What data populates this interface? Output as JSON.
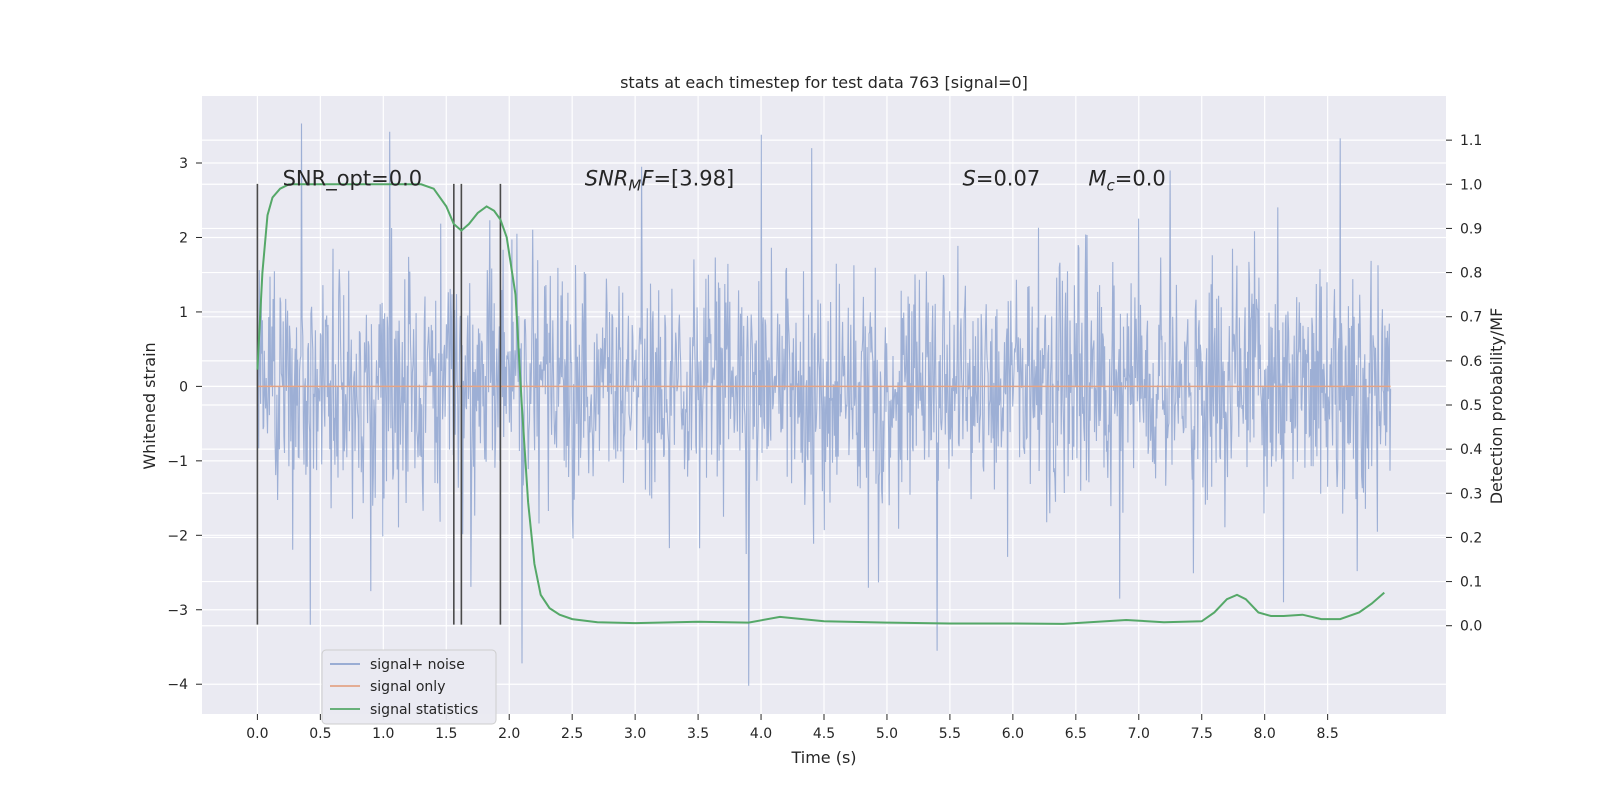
{
  "chart_data": {
    "type": "line",
    "title": "stats at each timestep for test data 763 [signal=0]",
    "xlabel": "Time (s)",
    "ylabel": "Whitened strain",
    "ylabel_right": "Detection probability/MF",
    "xlim": [
      -0.44,
      9.44
    ],
    "ylim": [
      -4.4,
      3.9
    ],
    "ylim_right": [
      -0.2,
      1.2
    ],
    "x_ticks": [
      "0.0",
      "0.5",
      "1.0",
      "1.5",
      "2.0",
      "2.5",
      "3.0",
      "3.5",
      "4.0",
      "4.5",
      "5.0",
      "5.5",
      "6.0",
      "6.5",
      "7.0",
      "7.5",
      "8.0",
      "8.5"
    ],
    "x_tick_values": [
      0.0,
      0.5,
      1.0,
      1.5,
      2.0,
      2.5,
      3.0,
      3.5,
      4.0,
      4.5,
      5.0,
      5.5,
      6.0,
      6.5,
      7.0,
      7.5,
      8.0,
      8.5
    ],
    "y_ticks": [
      "−4",
      "−3",
      "−2",
      "−1",
      "0",
      "1",
      "2",
      "3"
    ],
    "y_tick_values": [
      -4,
      -3,
      -2,
      -1,
      0,
      1,
      2,
      3
    ],
    "y2_ticks": [
      "0.0",
      "0.1",
      "0.2",
      "0.3",
      "0.4",
      "0.5",
      "0.6",
      "0.7",
      "0.8",
      "0.9",
      "1.0",
      "1.1"
    ],
    "y2_tick_values": [
      0.0,
      0.1,
      0.2,
      0.3,
      0.4,
      0.5,
      0.6,
      0.7,
      0.8,
      0.9,
      1.0,
      1.1
    ],
    "grid": true,
    "legend_position": "lower-left",
    "annotations": [
      {
        "text": "SNR_opt=0.0",
        "x": 0.2,
        "y": 2.7
      },
      {
        "text": "SNRMF=[3.98]",
        "x": 2.6,
        "y": 2.7
      },
      {
        "text": "S=0.07",
        "x": 5.6,
        "y": 2.7
      },
      {
        "text": "Mc=0.0",
        "x": 6.6,
        "y": 2.7
      }
    ],
    "vlines": {
      "x": [
        0.0,
        1.56,
        1.62,
        1.93
      ],
      "ymin": -3.2,
      "ymax": 2.72
    },
    "series": [
      {
        "name": "signal+ noise",
        "axis": "left",
        "color": "#8fa4d0",
        "t_range": [
          0.0,
          9.0
        ],
        "sample_count": 1800,
        "typical_amplitude": 0.8,
        "extremes": [
          {
            "x": 0.35,
            "y": 3.53
          },
          {
            "x": 0.42,
            "y": -3.2
          },
          {
            "x": 1.05,
            "y": 3.42
          },
          {
            "x": 2.1,
            "y": -3.72
          },
          {
            "x": 3.9,
            "y": -4.02
          },
          {
            "x": 4.0,
            "y": 3.38
          },
          {
            "x": 4.4,
            "y": 3.2
          },
          {
            "x": 5.4,
            "y": -3.55
          },
          {
            "x": 8.6,
            "y": 3.33
          },
          {
            "x": 3.05,
            "y": 2.95
          },
          {
            "x": 7.25,
            "y": 2.9
          },
          {
            "x": 0.9,
            "y": -2.75
          },
          {
            "x": 6.85,
            "y": -2.85
          },
          {
            "x": 8.15,
            "y": -2.9
          }
        ]
      },
      {
        "name": "signal only",
        "axis": "left",
        "color": "#e3a486",
        "x": [
          0.0,
          9.0
        ],
        "y": [
          0.0,
          0.0
        ]
      },
      {
        "name": "signal statistics",
        "axis": "right",
        "color": "#55a868",
        "x": [
          0.0,
          0.04,
          0.08,
          0.12,
          0.18,
          0.25,
          0.35,
          0.5,
          0.7,
          0.9,
          1.1,
          1.3,
          1.4,
          1.5,
          1.56,
          1.62,
          1.68,
          1.75,
          1.82,
          1.88,
          1.93,
          1.98,
          2.05,
          2.1,
          2.15,
          2.2,
          2.25,
          2.32,
          2.4,
          2.5,
          2.7,
          3.0,
          3.5,
          3.9,
          4.15,
          4.5,
          5.0,
          5.5,
          6.0,
          6.4,
          6.9,
          7.2,
          7.5,
          7.6,
          7.7,
          7.78,
          7.85,
          7.95,
          8.05,
          8.15,
          8.3,
          8.45,
          8.6,
          8.75,
          8.85,
          8.95
        ],
        "y": [
          0.58,
          0.8,
          0.93,
          0.97,
          0.99,
          1.0,
          1.0,
          1.0,
          1.0,
          1.0,
          1.0,
          1.0,
          0.99,
          0.95,
          0.91,
          0.895,
          0.91,
          0.935,
          0.95,
          0.94,
          0.92,
          0.88,
          0.75,
          0.5,
          0.28,
          0.14,
          0.07,
          0.04,
          0.025,
          0.015,
          0.008,
          0.006,
          0.009,
          0.007,
          0.02,
          0.01,
          0.007,
          0.005,
          0.005,
          0.004,
          0.013,
          0.008,
          0.01,
          0.03,
          0.06,
          0.07,
          0.06,
          0.03,
          0.022,
          0.022,
          0.025,
          0.015,
          0.015,
          0.03,
          0.05,
          0.075
        ]
      }
    ]
  }
}
